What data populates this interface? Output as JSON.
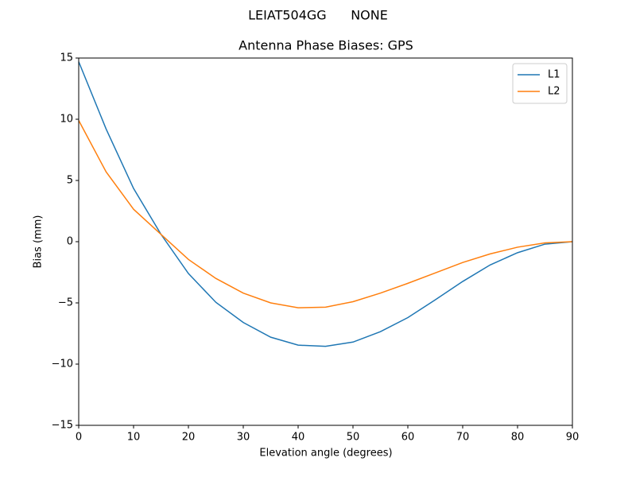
{
  "chart_data": {
    "type": "line",
    "suptitle": "LEIAT504GG      NONE",
    "title": "Antenna Phase Biases: GPS",
    "x_label": "Elevation angle (degrees)",
    "y_label": "Bias (mm)",
    "x": [
      0,
      5,
      10,
      15,
      20,
      25,
      30,
      35,
      40,
      45,
      50,
      55,
      60,
      65,
      70,
      75,
      80,
      85,
      90
    ],
    "series": [
      {
        "name": "L1",
        "color": "#1f77b4",
        "values": [
          14.7,
          9.2,
          4.35,
          0.6,
          -2.6,
          -4.95,
          -6.6,
          -7.8,
          -8.45,
          -8.55,
          -8.2,
          -7.35,
          -6.2,
          -4.75,
          -3.25,
          -1.9,
          -0.9,
          -0.2,
          0
        ]
      },
      {
        "name": "L2",
        "color": "#ff7f0e",
        "values": [
          9.9,
          5.7,
          2.65,
          0.6,
          -1.45,
          -3.0,
          -4.2,
          -5.0,
          -5.4,
          -5.35,
          -4.9,
          -4.2,
          -3.4,
          -2.55,
          -1.7,
          -1.0,
          -0.45,
          -0.1,
          0
        ]
      }
    ],
    "xlim": [
      0,
      90
    ],
    "xticks": [
      0,
      10,
      20,
      30,
      40,
      50,
      60,
      70,
      80,
      90
    ],
    "ylim": [
      -15,
      15
    ],
    "yticks": [
      {
        "value": -15,
        "label": "−15"
      },
      {
        "value": -10,
        "label": "−10"
      },
      {
        "value": -5,
        "label": "−5"
      },
      0,
      5,
      10,
      15
    ],
    "legend": "upper right"
  }
}
